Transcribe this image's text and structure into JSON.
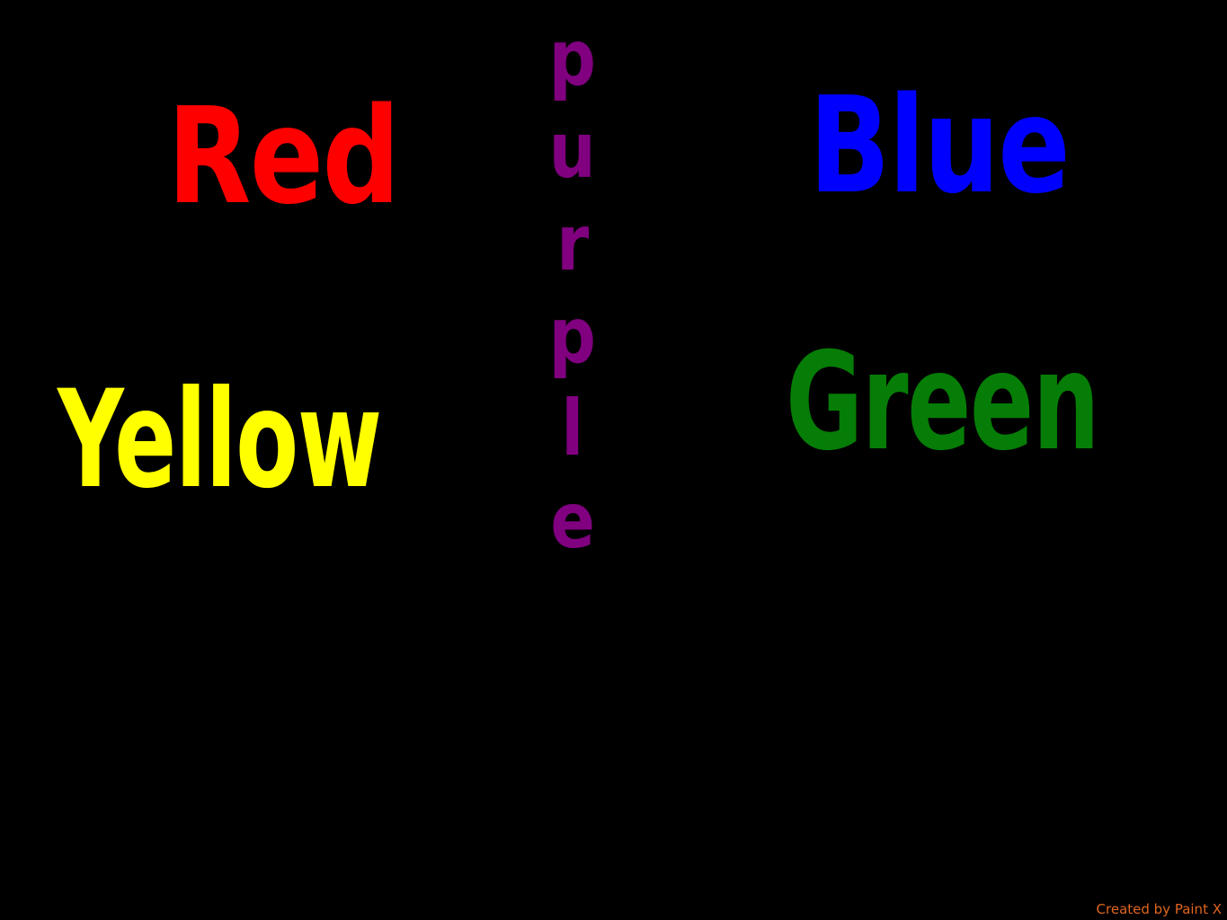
{
  "colors": {
    "background": "#000000",
    "red": "#ff0000",
    "blue": "#0000ff",
    "yellow": "#ffff00",
    "green": "#067d06",
    "purple": "#800080",
    "credit": "#e0661f"
  },
  "words": {
    "red": "Red",
    "blue": "Blue",
    "yellow": "Yellow",
    "green": "Green"
  },
  "vertical_word": {
    "letters": [
      "p",
      "u",
      "r",
      "p",
      "l",
      "e"
    ]
  },
  "footer": {
    "credit": "Created by Paint X"
  }
}
